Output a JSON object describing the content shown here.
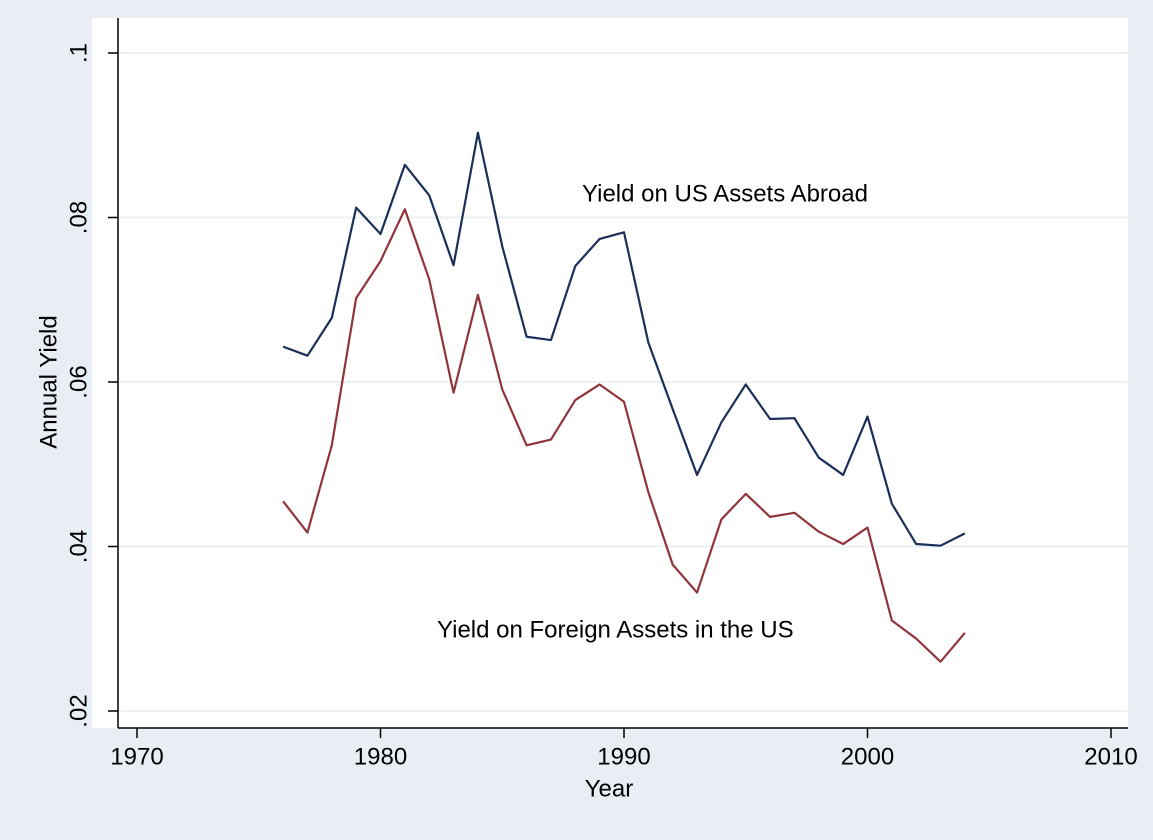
{
  "chart_data": {
    "type": "line",
    "x_label": "Year",
    "y_label": "Annual Yield",
    "annotations": [
      "Yield on US Assets Abroad",
      "Yield on Foreign Assets in the US"
    ],
    "x": [
      1976,
      1977,
      1978,
      1979,
      1980,
      1981,
      1982,
      1983,
      1984,
      1985,
      1986,
      1987,
      1988,
      1989,
      1990,
      1991,
      1992,
      1993,
      1994,
      1995,
      1996,
      1997,
      1998,
      1999,
      2000,
      2001,
      2002,
      2003,
      2004
    ],
    "series": [
      {
        "color": "#1a2f5a",
        "values": [
          0.0643,
          0.0632,
          0.0678,
          0.0812,
          0.078,
          0.0864,
          0.0827,
          0.0742,
          0.0903,
          0.0765,
          0.0655,
          0.0651,
          0.0741,
          0.0774,
          0.0782,
          0.0648,
          0.0567,
          0.0487,
          0.0551,
          0.0597,
          0.0555,
          0.0556,
          0.0508,
          0.0487,
          0.0558,
          0.0452,
          0.0403,
          0.0401,
          0.0416
        ]
      },
      {
        "color": "#90353b",
        "values": [
          0.0455,
          0.0417,
          0.0523,
          0.0702,
          0.0747,
          0.081,
          0.0725,
          0.0587,
          0.0706,
          0.0591,
          0.0523,
          0.053,
          0.0578,
          0.0597,
          0.0576,
          0.0466,
          0.0378,
          0.0344,
          0.0433,
          0.0464,
          0.0436,
          0.0441,
          0.0418,
          0.0403,
          0.0423,
          0.031,
          0.0288,
          0.026,
          0.0295
        ]
      }
    ],
    "xlim": [
      1970,
      2010
    ],
    "xticks": [
      1970,
      1980,
      1990,
      2000,
      2010
    ],
    "ylim": [
      0.02,
      0.1
    ],
    "yticks": [
      {
        "value": 0.02,
        "label": ".02"
      },
      {
        "value": 0.04,
        "label": ".04"
      },
      {
        "value": 0.06,
        "label": ".06"
      },
      {
        "value": 0.08,
        "label": ".08"
      },
      {
        "value": 0.1,
        "label": ".1"
      }
    ],
    "grid": true
  }
}
